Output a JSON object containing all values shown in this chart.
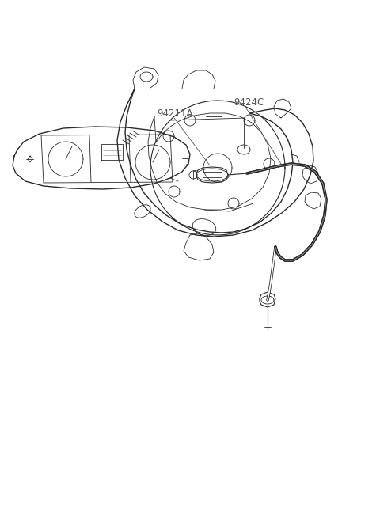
{
  "bg_color": "#ffffff",
  "line_color": "#2a2a2a",
  "label_color": "#555555",
  "labels": [
    "94211A",
    "9424C"
  ],
  "figsize": [
    4.8,
    6.57
  ],
  "dpi": 100
}
